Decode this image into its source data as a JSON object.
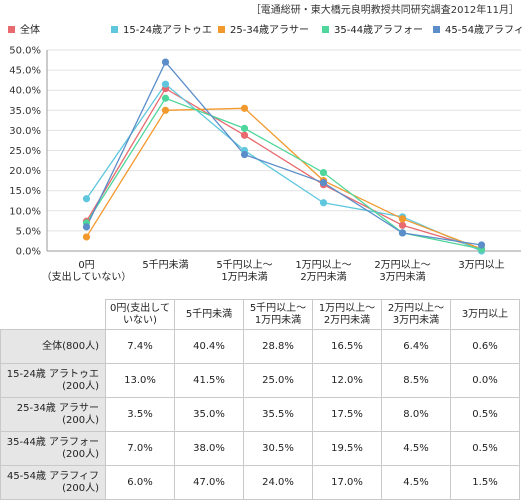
{
  "source_note": "［電通総研・東大橋元良明教授共同研究調査2012年11月］",
  "colors": {
    "全体": "#e8696e",
    "15-24歳アラトゥエ": "#5fc7dd",
    "25-34歳アラサー": "#f2992e",
    "35-44歳アラフォー": "#4fd69a",
    "45-54歳アラフィフ": "#5b8ec9"
  },
  "chart_data": {
    "type": "line",
    "categories": [
      [
        "0円",
        "（支出していない）"
      ],
      [
        "5千円未満"
      ],
      [
        "5千円以上～",
        "1万円未満"
      ],
      [
        "1万円以上～",
        "2万円未満"
      ],
      [
        "2万円以上～",
        "3万円未満"
      ],
      [
        "3万円以上"
      ]
    ],
    "y_ticks": [
      "0.0%",
      "5.0%",
      "10.0%",
      "15.0%",
      "20.0%",
      "25.0%",
      "30.0%",
      "35.0%",
      "40.0%",
      "45.0%",
      "50.0%"
    ],
    "ylim": [
      0,
      50
    ],
    "grid": true,
    "legend_position": "top",
    "series": [
      {
        "name": "全体",
        "values": [
          7.4,
          40.4,
          28.8,
          16.5,
          6.4,
          0.6
        ]
      },
      {
        "name": "15-24歳アラトゥエ",
        "values": [
          13.0,
          41.5,
          25.0,
          12.0,
          8.5,
          0.0
        ]
      },
      {
        "name": "25-34歳アラサー",
        "values": [
          3.5,
          35.0,
          35.5,
          17.5,
          8.0,
          0.5
        ]
      },
      {
        "name": "35-44歳アラフォー",
        "values": [
          7.0,
          38.0,
          30.5,
          19.5,
          4.5,
          0.5
        ]
      },
      {
        "name": "45-54歳アラフィフ",
        "values": [
          6.0,
          47.0,
          24.0,
          17.0,
          4.5,
          1.5
        ]
      }
    ]
  },
  "table": {
    "headers": [
      [
        "0円(支出して",
        "いない)"
      ],
      [
        "5千円未満"
      ],
      [
        "5千円以上～",
        "1万円未満"
      ],
      [
        "1万円以上～",
        "2万円未満"
      ],
      [
        "2万円以上～",
        "3万円未満"
      ],
      [
        "3万円以上"
      ]
    ],
    "rows": [
      {
        "label": [
          "全体(800人)"
        ],
        "cells": [
          "7.4%",
          "40.4%",
          "28.8%",
          "16.5%",
          "6.4%",
          "0.6%"
        ]
      },
      {
        "label": [
          "15-24歳 アラトゥエ",
          "(200人)"
        ],
        "cells": [
          "13.0%",
          "41.5%",
          "25.0%",
          "12.0%",
          "8.5%",
          "0.0%"
        ]
      },
      {
        "label": [
          "25-34歳 アラサー",
          "(200人)"
        ],
        "cells": [
          "3.5%",
          "35.0%",
          "35.5%",
          "17.5%",
          "8.0%",
          "0.5%"
        ]
      },
      {
        "label": [
          "35-44歳 アラフォー",
          "(200人)"
        ],
        "cells": [
          "7.0%",
          "38.0%",
          "30.5%",
          "19.5%",
          "4.5%",
          "0.5%"
        ]
      },
      {
        "label": [
          "45-54歳 アラフィフ",
          "(200人)"
        ],
        "cells": [
          "6.0%",
          "47.0%",
          "24.0%",
          "17.0%",
          "4.5%",
          "1.5%"
        ]
      }
    ]
  }
}
